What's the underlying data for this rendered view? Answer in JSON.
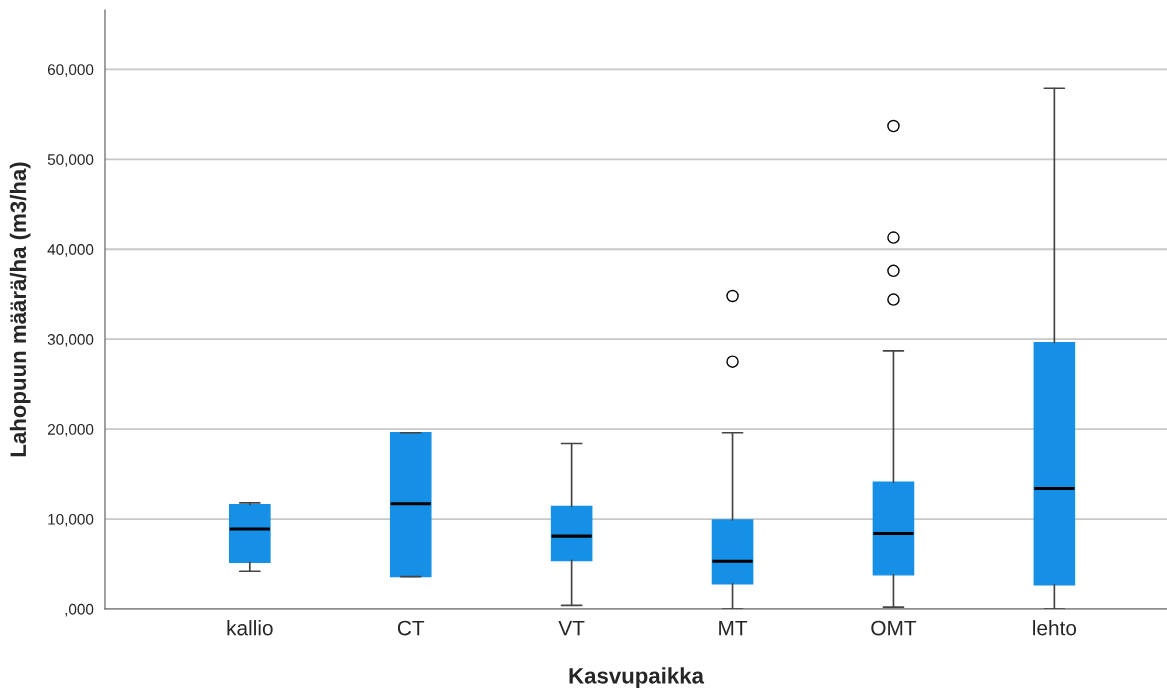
{
  "chart_data": {
    "type": "box",
    "xlabel": "Kasvupaikka",
    "ylabel": "Lahopuun määrä/ha (m3/ha)",
    "categories": [
      "kallio",
      "CT",
      "VT",
      "MT",
      "OMT",
      "lehto"
    ],
    "color": "#1590e6",
    "boxes": [
      {
        "low": 4200,
        "q1": 5200,
        "median": 8900,
        "q3": 11600,
        "high": 11800
      },
      {
        "low": 3600,
        "q1": 3600,
        "median": 11700,
        "q3": 19600,
        "high": 19600
      },
      {
        "low": 400,
        "q1": 5400,
        "median": 8100,
        "q3": 11400,
        "high": 18400
      },
      {
        "low": 0,
        "q1": 2800,
        "median": 5300,
        "q3": 9900,
        "high": 19600,
        "outliers": [
          27500,
          34800
        ]
      },
      {
        "low": 200,
        "q1": 3800,
        "median": 8400,
        "q3": 14100,
        "high": 28700,
        "outliers": [
          34400,
          37600,
          41300,
          53700
        ]
      },
      {
        "low": 0,
        "q1": 2700,
        "median": 13400,
        "q3": 29600,
        "high": 57900
      }
    ],
    "ylim": [
      0,
      66600
    ],
    "yticks": [
      {
        "value": 0,
        "label": ",000"
      },
      {
        "value": 10000,
        "label": "10,000"
      },
      {
        "value": 20000,
        "label": "20,000"
      },
      {
        "value": 30000,
        "label": "30,000"
      },
      {
        "value": 40000,
        "label": "40,000"
      },
      {
        "value": 50000,
        "label": "50,000"
      },
      {
        "value": 60000,
        "label": "60,000"
      }
    ],
    "grid": "y"
  }
}
